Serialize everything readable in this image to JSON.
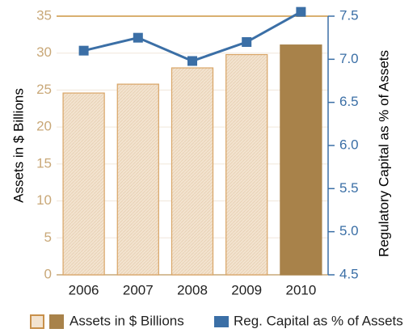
{
  "chart_data": {
    "type": "bar_line",
    "categories": [
      "2006",
      "2007",
      "2008",
      "2009",
      "2010"
    ],
    "series": [
      {
        "name": "Assets in $ Billions",
        "color": "#f3e3cf",
        "colors": [
          "#f3e3cf",
          "#f3e3cf",
          "#f3e3cf",
          "#f3e3cf",
          "#a8824a"
        ],
        "values": [
          24.6,
          25.8,
          28.0,
          29.8,
          31.1
        ]
      },
      {
        "name": "Reg. Capital as % of Assets",
        "color": "#3b6fa6",
        "axis": "y2",
        "values": [
          7.1,
          7.25,
          6.98,
          7.2,
          7.55
        ]
      }
    ],
    "ylabel": "Assets in $ Billions",
    "y2label": "Regulatory Capital as % of Assets",
    "ylim": [
      0,
      35
    ],
    "yticks": [
      0,
      5,
      10,
      15,
      20,
      25,
      30,
      35
    ],
    "y2lim": [
      4.5,
      7.5
    ],
    "y2ticks": [
      4.5,
      {
        "value": 5,
        "label": "5.0"
      },
      5.5,
      {
        "value": 6,
        "label": "6.0"
      },
      6.5,
      {
        "value": 7,
        "label": "7.0"
      },
      7.5
    ],
    "grid": true
  }
}
